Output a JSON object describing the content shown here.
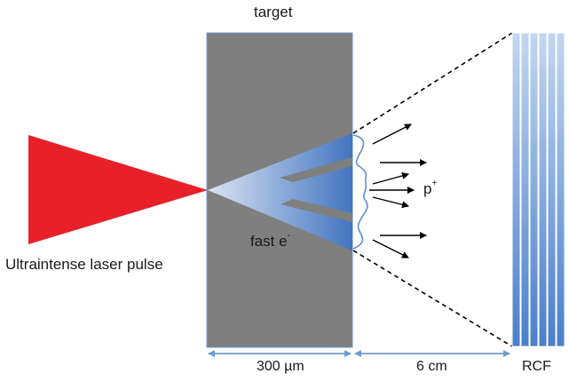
{
  "labels": {
    "target": "target",
    "laser": "Ultraintense laser pulse",
    "electrons": "fast e",
    "electrons_sup": "-",
    "protons": "p",
    "protons_sup": "+",
    "target_thickness": "300 µm",
    "distance": "6 cm",
    "detector": "RCF"
  },
  "colors": {
    "laser": "#e8202a",
    "target": "#7f7f7f",
    "electron_cone": "#5b8fd6",
    "rcf_light": "#b9d1ee",
    "rcf_dark": "#4a7fcb",
    "dimension_arrow": "#6b9bd2",
    "arrows": "#000000"
  },
  "rcf_stack": {
    "layer_count": 6
  },
  "proton_arrows_count": 6
}
